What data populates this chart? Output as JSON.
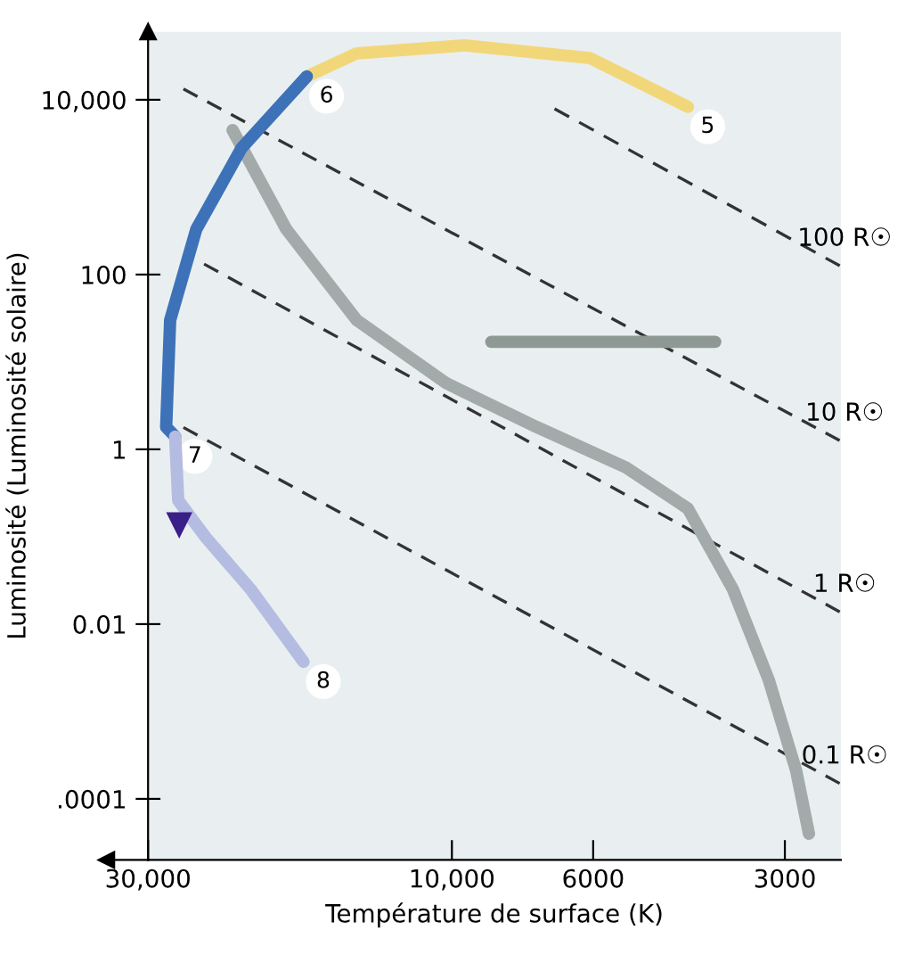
{
  "chart_data": {
    "type": "line",
    "xlabel": "Température de surface (K)",
    "ylabel": "Luminosité (Luminosité solaire)",
    "log": "xy",
    "xlim": [
      30000,
      2450
    ],
    "ylim": [
      2e-05,
      60000
    ],
    "xticks": [
      {
        "value": 30000,
        "label": "30,000"
      },
      {
        "value": 10000,
        "label": "10,000"
      },
      6000,
      3000
    ],
    "yticks": [
      {
        "value": 10000,
        "label": "10,000"
      },
      100,
      1,
      0.01,
      {
        "value": 0.0001,
        "label": ".0001"
      }
    ],
    "grid": false,
    "legend": false,
    "marker": "none",
    "series": [
      {
        "line_style": "dashed",
        "name": "100 R☉",
        "color": "#333333",
        "x": [
          6900,
          2460
        ],
        "values": [
          7900,
          126
        ]
      },
      {
        "line_style": "dashed",
        "name": "10 R☉",
        "color": "#333333",
        "x": [
          26400,
          2460
        ],
        "values": [
          13300,
          1.26
        ]
      },
      {
        "line_style": "dashed",
        "name": "1 R☉",
        "color": "#333333",
        "x": [
          24500,
          2460
        ],
        "values": [
          132,
          0.0138
        ]
      },
      {
        "line_style": "dashed",
        "name": "0.1 R☉",
        "color": "#333333",
        "x": [
          26400,
          2460
        ],
        "values": [
          1.78,
          0.00015
        ]
      },
      {
        "line_style": "solid",
        "color": "#a3abaa",
        "x": [
          22100,
          18200,
          14100,
          10200,
          7360,
          5330,
          4260,
          3620,
          3180,
          2880,
          2750
        ],
        "values": [
          4500,
          330,
          30,
          5.7,
          1.8,
          0.62,
          0.21,
          0.025,
          0.0023,
          0.00021,
          4e-05
        ]
      },
      {
        "line_style": "solid",
        "color": "#8e9894",
        "x": [
          8670,
          3860
        ],
        "values": [
          17,
          17
        ]
      },
      {
        "line_style": "solid",
        "color": "#f2d77a",
        "x": [
          4260,
          6070,
          9550,
          14100,
          16900
        ],
        "values": [
          8300,
          30000,
          42000,
          34000,
          18500
        ]
      },
      {
        "line_style": "solid",
        "color": "#3d72b8",
        "x": [
          16900,
          21400,
          25200,
          27700,
          28100,
          27200
        ],
        "values": [
          18500,
          2800,
          330,
          30,
          1.8,
          1.4
        ]
      },
      {
        "line_style": "solid",
        "color": "#b4bce2",
        "x": [
          27200,
          26900,
          24400,
          20700,
          17100
        ],
        "values": [
          1.4,
          0.26,
          0.1,
          0.025,
          0.0037
        ]
      }
    ],
    "annotations": [
      {
        "text": "5",
        "x": 4260,
        "y": 8300
      },
      {
        "text": "6",
        "x": 16900,
        "y": 18500
      },
      {
        "text": "7",
        "x": 27200,
        "y": 1.4
      },
      {
        "text": "8",
        "x": 17100,
        "y": 0.0037
      }
    ]
  }
}
